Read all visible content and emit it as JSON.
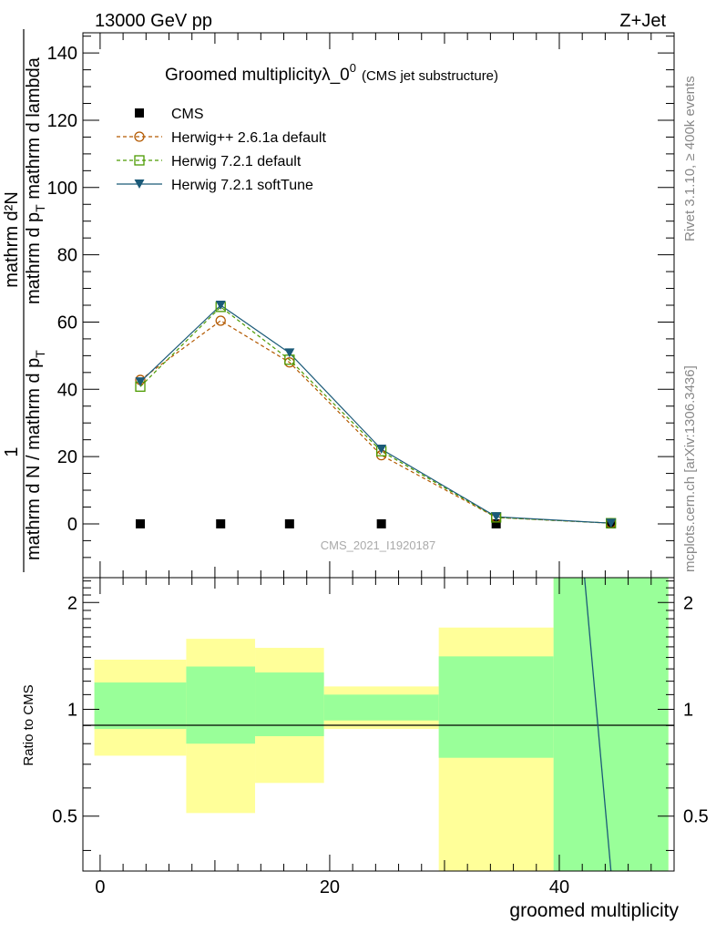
{
  "header": {
    "energy_label": "13000 GeV pp",
    "process_label": "Z+Jet"
  },
  "side": {
    "rivet_label": "Rivet 3.1.10, ≥ 400k events",
    "mcplots_label": "mcplots.cern.ch [arXiv:1306.3436]"
  },
  "colors": {
    "cms": "#000000",
    "herwig_pp": "#b35900",
    "herwig_721": "#4c9a00",
    "herwig_soft": "#1b5a78",
    "band_outer": "#ffff99",
    "band_inner": "#99ff99"
  },
  "chart_data": [
    {
      "type": "line",
      "title": "Groomed multiplicityλ_0",
      "title_sup": "0",
      "subtitle": "(CMS jet substructure)",
      "analysis_id": "CMS_2021_I1920187",
      "ylabel_numerator": "mathrm d²N",
      "ylabel_denominator": "mathrm d p",
      "ylabel_denominator_sub": "T",
      "ylabel_denominator_tail": " mathrm d lambda",
      "ylabel_prefix_num": "1",
      "ylabel_prefix_den": "mathrm d N / mathrm d p",
      "ylabel_prefix_den_sub": "T",
      "xlim": [
        -1.5,
        50
      ],
      "ylim": [
        -16,
        146
      ],
      "yticks": [
        0,
        20,
        40,
        60,
        80,
        100,
        120,
        140
      ],
      "ytick_labels": [
        "0",
        "20",
        "40",
        "60",
        "80",
        "100",
        "120",
        "140"
      ],
      "legend_position": "top-left",
      "x": [
        3.5,
        10.5,
        16.5,
        24.5,
        34.5,
        44.5
      ],
      "series": [
        {
          "name": "CMS",
          "key": "cms",
          "marker": "square-filled",
          "values": [
            0,
            0,
            0,
            0,
            0,
            0
          ]
        },
        {
          "name": "Herwig++ 2.6.1a default",
          "key": "herwig_pp",
          "marker": "circle-open",
          "dashed": true,
          "values": [
            42.8,
            60.4,
            48.0,
            20.4,
            1.9,
            0.2
          ]
        },
        {
          "name": "Herwig 7.2.1 default",
          "key": "herwig_721",
          "marker": "square-open",
          "dashed": true,
          "values": [
            40.8,
            64.5,
            48.8,
            21.6,
            1.9,
            0.2
          ]
        },
        {
          "name": "Herwig 7.2.1 softTune",
          "key": "herwig_soft",
          "marker": "triangle-down",
          "dashed": false,
          "values": [
            42.2,
            65.0,
            50.8,
            22.2,
            2.1,
            0.2
          ]
        }
      ]
    },
    {
      "type": "area",
      "ylabel": "Ratio to CMS",
      "xlabel": "groomed multiplicity",
      "xlim": [
        -1.5,
        50
      ],
      "ylim": [
        0.35,
        2.35
      ],
      "yticks": [
        0.5,
        1,
        2
      ],
      "ytick_labels": [
        "0.5",
        "1",
        "2"
      ],
      "xticks": [
        0,
        20,
        40
      ],
      "xtick_labels": [
        "0",
        "20",
        "40"
      ],
      "bins": [
        {
          "lo": -0.5,
          "hi": 7.5,
          "outer": [
            0.74,
            1.38
          ],
          "inner": [
            0.88,
            1.19
          ]
        },
        {
          "lo": 7.5,
          "hi": 13.5,
          "outer": [
            0.51,
            1.58
          ],
          "inner": [
            0.8,
            1.32
          ]
        },
        {
          "lo": 13.5,
          "hi": 19.5,
          "outer": [
            0.62,
            1.49
          ],
          "inner": [
            0.84,
            1.27
          ]
        },
        {
          "lo": 19.5,
          "hi": 29.5,
          "outer": [
            0.88,
            1.16
          ],
          "inner": [
            0.93,
            1.1
          ]
        },
        {
          "lo": 29.5,
          "hi": 39.5,
          "outer": [
            0.35,
            1.7
          ],
          "inner": [
            0.73,
            1.41
          ]
        },
        {
          "lo": 39.5,
          "hi": 49.5,
          "outer": [
            0.35,
            2.35
          ],
          "inner": [
            0.35,
            2.35
          ]
        }
      ],
      "ratio_line": {
        "name": "Herwig 7.2.1 softTune",
        "points": [
          [
            42.2,
            2.35
          ],
          [
            44.5,
            0.35
          ]
        ]
      }
    }
  ]
}
